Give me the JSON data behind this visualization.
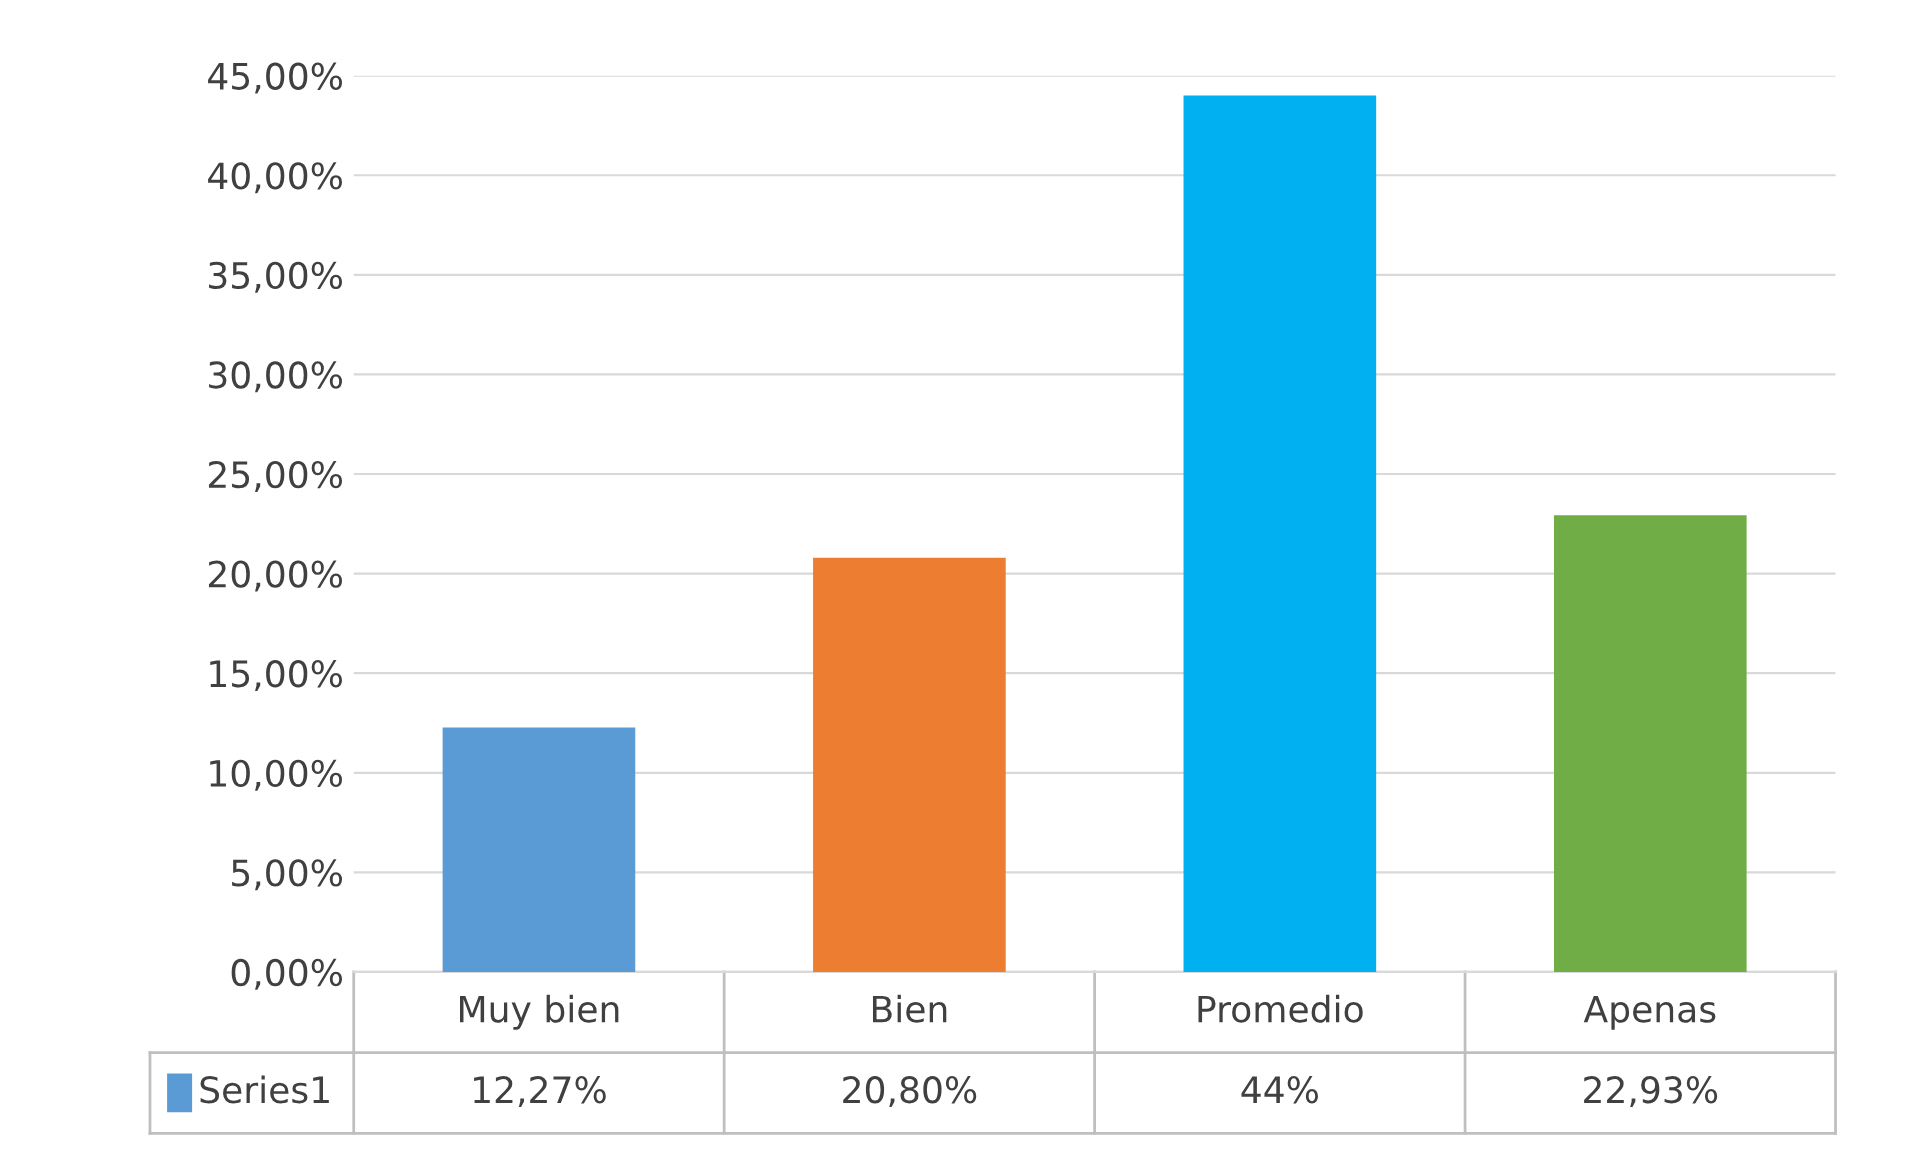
{
  "chart_data": {
    "type": "bar",
    "categories": [
      "Muy bien",
      "Bien",
      "Promedio",
      "Apenas"
    ],
    "series": [
      {
        "name": "Series1",
        "color": "#5b9bd5",
        "colors": [
          "#5b9bd5",
          "#ed7d31",
          "#00b0f0",
          "#70ad47"
        ],
        "values": [
          12.27,
          20.8,
          44,
          22.93
        ],
        "value_labels": [
          "12,27%",
          "20,80%",
          "44%",
          "22,93%"
        ]
      }
    ],
    "ylim": [
      0,
      45
    ],
    "yticks": [
      {
        "value": 0,
        "label": "0,00%"
      },
      {
        "value": 5,
        "label": "5,00%"
      },
      {
        "value": 10,
        "label": "10,00%"
      },
      {
        "value": 15,
        "label": "15,00%"
      },
      {
        "value": 20,
        "label": "20,00%"
      },
      {
        "value": 25,
        "label": "25,00%"
      },
      {
        "value": 30,
        "label": "30,00%"
      },
      {
        "value": 35,
        "label": "35,00%"
      },
      {
        "value": 40,
        "label": "40,00%"
      },
      {
        "value": 45,
        "label": "45,00%"
      }
    ],
    "grid": "y",
    "legend": "bottom"
  }
}
